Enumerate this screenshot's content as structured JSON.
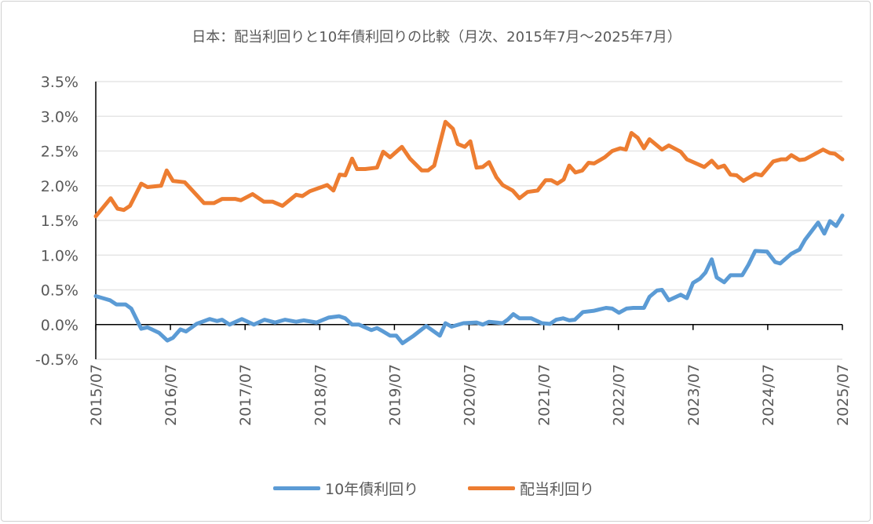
{
  "chart_data": {
    "type": "line",
    "title": "日本：配当利回りと10年債利回りの比較（月次、2015年7月～2025年7月）",
    "xlabel": "",
    "ylabel": "",
    "x_unit": "months since 2015/07",
    "x_tick_labels": [
      "2015/07",
      "2016/07",
      "2017/07",
      "2018/07",
      "2019/07",
      "2020/07",
      "2021/07",
      "2022/07",
      "2023/07",
      "2024/07",
      "2025/07"
    ],
    "y_tick_labels": [
      "3.5%",
      "3.0%",
      "2.5%",
      "2.0%",
      "1.5%",
      "1.0%",
      "0.5%",
      "0.0%",
      "-0.5%"
    ],
    "ylim": [
      -0.5,
      3.5
    ],
    "xlim": [
      0,
      120
    ],
    "grid": true,
    "legend_position": "bottom",
    "series": [
      {
        "name": "10年債利回り",
        "color": "#5B9BD5",
        "points": [
          [
            0,
            0.41
          ],
          [
            2.3,
            0.35
          ],
          [
            3.3,
            0.29
          ],
          [
            4.8,
            0.29
          ],
          [
            5.7,
            0.23
          ],
          [
            7.3,
            -0.06
          ],
          [
            8.3,
            -0.04
          ],
          [
            10.2,
            -0.12
          ],
          [
            11.5,
            -0.23
          ],
          [
            12.4,
            -0.19
          ],
          [
            13.6,
            -0.07
          ],
          [
            14.5,
            -0.1
          ],
          [
            16.2,
            0.01
          ],
          [
            18.3,
            0.08
          ],
          [
            19.5,
            0.05
          ],
          [
            20.3,
            0.07
          ],
          [
            21.5,
            0.0
          ],
          [
            23.5,
            0.08
          ],
          [
            25.4,
            0.0
          ],
          [
            27.1,
            0.07
          ],
          [
            28.8,
            0.03
          ],
          [
            30.4,
            0.07
          ],
          [
            32.2,
            0.04
          ],
          [
            33.4,
            0.06
          ],
          [
            35.5,
            0.03
          ],
          [
            37.4,
            0.1
          ],
          [
            39.1,
            0.12
          ],
          [
            40.1,
            0.09
          ],
          [
            41.2,
            0.0
          ],
          [
            42.3,
            0.0
          ],
          [
            44.3,
            -0.08
          ],
          [
            45.2,
            -0.05
          ],
          [
            46.2,
            -0.1
          ],
          [
            47.3,
            -0.16
          ],
          [
            48.3,
            -0.16
          ],
          [
            49.3,
            -0.27
          ],
          [
            51.1,
            -0.16
          ],
          [
            53.1,
            -0.02
          ],
          [
            55.3,
            -0.16
          ],
          [
            56.2,
            0.02
          ],
          [
            57.2,
            -0.03
          ],
          [
            59.1,
            0.02
          ],
          [
            61.2,
            0.03
          ],
          [
            62.2,
            0.0
          ],
          [
            63.2,
            0.04
          ],
          [
            65.4,
            0.02
          ],
          [
            66.2,
            0.07
          ],
          [
            67.1,
            0.15
          ],
          [
            68.1,
            0.09
          ],
          [
            70,
            0.09
          ],
          [
            71.7,
            0.02
          ],
          [
            73,
            0.01
          ],
          [
            74,
            0.07
          ],
          [
            75.1,
            0.09
          ],
          [
            76.1,
            0.06
          ],
          [
            77,
            0.07
          ],
          [
            78.3,
            0.18
          ],
          [
            80.1,
            0.2
          ],
          [
            82,
            0.24
          ],
          [
            83,
            0.23
          ],
          [
            84.1,
            0.17
          ],
          [
            85.3,
            0.23
          ],
          [
            86.4,
            0.24
          ],
          [
            88.1,
            0.24
          ],
          [
            89,
            0.4
          ],
          [
            90.2,
            0.49
          ],
          [
            91,
            0.5
          ],
          [
            92.1,
            0.35
          ],
          [
            94,
            0.43
          ],
          [
            95,
            0.38
          ],
          [
            96,
            0.6
          ],
          [
            97.1,
            0.66
          ],
          [
            98,
            0.75
          ],
          [
            99,
            0.94
          ],
          [
            99.8,
            0.68
          ],
          [
            101,
            0.61
          ],
          [
            102,
            0.71
          ],
          [
            103.9,
            0.71
          ],
          [
            104.9,
            0.86
          ],
          [
            106,
            1.06
          ],
          [
            107.9,
            1.05
          ],
          [
            109.2,
            0.9
          ],
          [
            110,
            0.88
          ],
          [
            111.8,
            1.02
          ],
          [
            113.1,
            1.08
          ],
          [
            114,
            1.22
          ],
          [
            116.1,
            1.47
          ],
          [
            117.1,
            1.31
          ],
          [
            118,
            1.49
          ],
          [
            119,
            1.42
          ],
          [
            120,
            1.57
          ]
        ]
      },
      {
        "name": "配当利回り",
        "color": "#ED7D31",
        "points": [
          [
            0,
            1.56
          ],
          [
            2.4,
            1.82
          ],
          [
            3.5,
            1.67
          ],
          [
            4.5,
            1.65
          ],
          [
            5.5,
            1.71
          ],
          [
            7.3,
            2.03
          ],
          [
            8.3,
            1.98
          ],
          [
            10.5,
            2.0
          ],
          [
            11.4,
            2.22
          ],
          [
            12.4,
            2.07
          ],
          [
            14.3,
            2.05
          ],
          [
            17.4,
            1.75
          ],
          [
            19,
            1.75
          ],
          [
            20.3,
            1.81
          ],
          [
            22.4,
            1.81
          ],
          [
            23.3,
            1.79
          ],
          [
            25.2,
            1.88
          ],
          [
            27,
            1.77
          ],
          [
            28.4,
            1.77
          ],
          [
            30,
            1.71
          ],
          [
            32.2,
            1.87
          ],
          [
            33.2,
            1.85
          ],
          [
            34.4,
            1.92
          ],
          [
            37.2,
            2.01
          ],
          [
            38.2,
            1.93
          ],
          [
            39.2,
            2.16
          ],
          [
            40.1,
            2.15
          ],
          [
            41.2,
            2.39
          ],
          [
            42,
            2.24
          ],
          [
            43.3,
            2.24
          ],
          [
            45.2,
            2.26
          ],
          [
            46.2,
            2.49
          ],
          [
            47.3,
            2.41
          ],
          [
            49.2,
            2.56
          ],
          [
            50.5,
            2.39
          ],
          [
            52.4,
            2.22
          ],
          [
            53.4,
            2.22
          ],
          [
            54.4,
            2.29
          ],
          [
            56.2,
            2.92
          ],
          [
            57.4,
            2.82
          ],
          [
            58.2,
            2.6
          ],
          [
            59.3,
            2.56
          ],
          [
            60.2,
            2.64
          ],
          [
            61.2,
            2.26
          ],
          [
            62.2,
            2.27
          ],
          [
            63.2,
            2.34
          ],
          [
            64.4,
            2.12
          ],
          [
            65.4,
            2.01
          ],
          [
            67,
            1.93
          ],
          [
            68.1,
            1.82
          ],
          [
            69.4,
            1.91
          ],
          [
            71,
            1.93
          ],
          [
            72.3,
            2.08
          ],
          [
            73.2,
            2.08
          ],
          [
            74.2,
            2.03
          ],
          [
            75.2,
            2.09
          ],
          [
            76.1,
            2.29
          ],
          [
            77.1,
            2.19
          ],
          [
            78.2,
            2.22
          ],
          [
            79.2,
            2.33
          ],
          [
            80.1,
            2.32
          ],
          [
            81.8,
            2.41
          ],
          [
            83,
            2.5
          ],
          [
            84.3,
            2.54
          ],
          [
            85.2,
            2.52
          ],
          [
            86.1,
            2.76
          ],
          [
            87.1,
            2.69
          ],
          [
            88.1,
            2.54
          ],
          [
            89,
            2.67
          ],
          [
            91,
            2.52
          ],
          [
            92.1,
            2.58
          ],
          [
            94,
            2.49
          ],
          [
            95,
            2.38
          ],
          [
            96.5,
            2.32
          ],
          [
            97.8,
            2.27
          ],
          [
            99,
            2.36
          ],
          [
            100,
            2.26
          ],
          [
            101,
            2.29
          ],
          [
            102,
            2.16
          ],
          [
            103,
            2.15
          ],
          [
            104.1,
            2.07
          ],
          [
            106,
            2.17
          ],
          [
            107,
            2.15
          ],
          [
            108.9,
            2.35
          ],
          [
            110.2,
            2.38
          ],
          [
            111,
            2.38
          ],
          [
            111.8,
            2.44
          ],
          [
            113.1,
            2.37
          ],
          [
            114,
            2.38
          ],
          [
            116.9,
            2.52
          ],
          [
            118,
            2.47
          ],
          [
            118.8,
            2.46
          ],
          [
            120,
            2.38
          ]
        ]
      }
    ]
  }
}
